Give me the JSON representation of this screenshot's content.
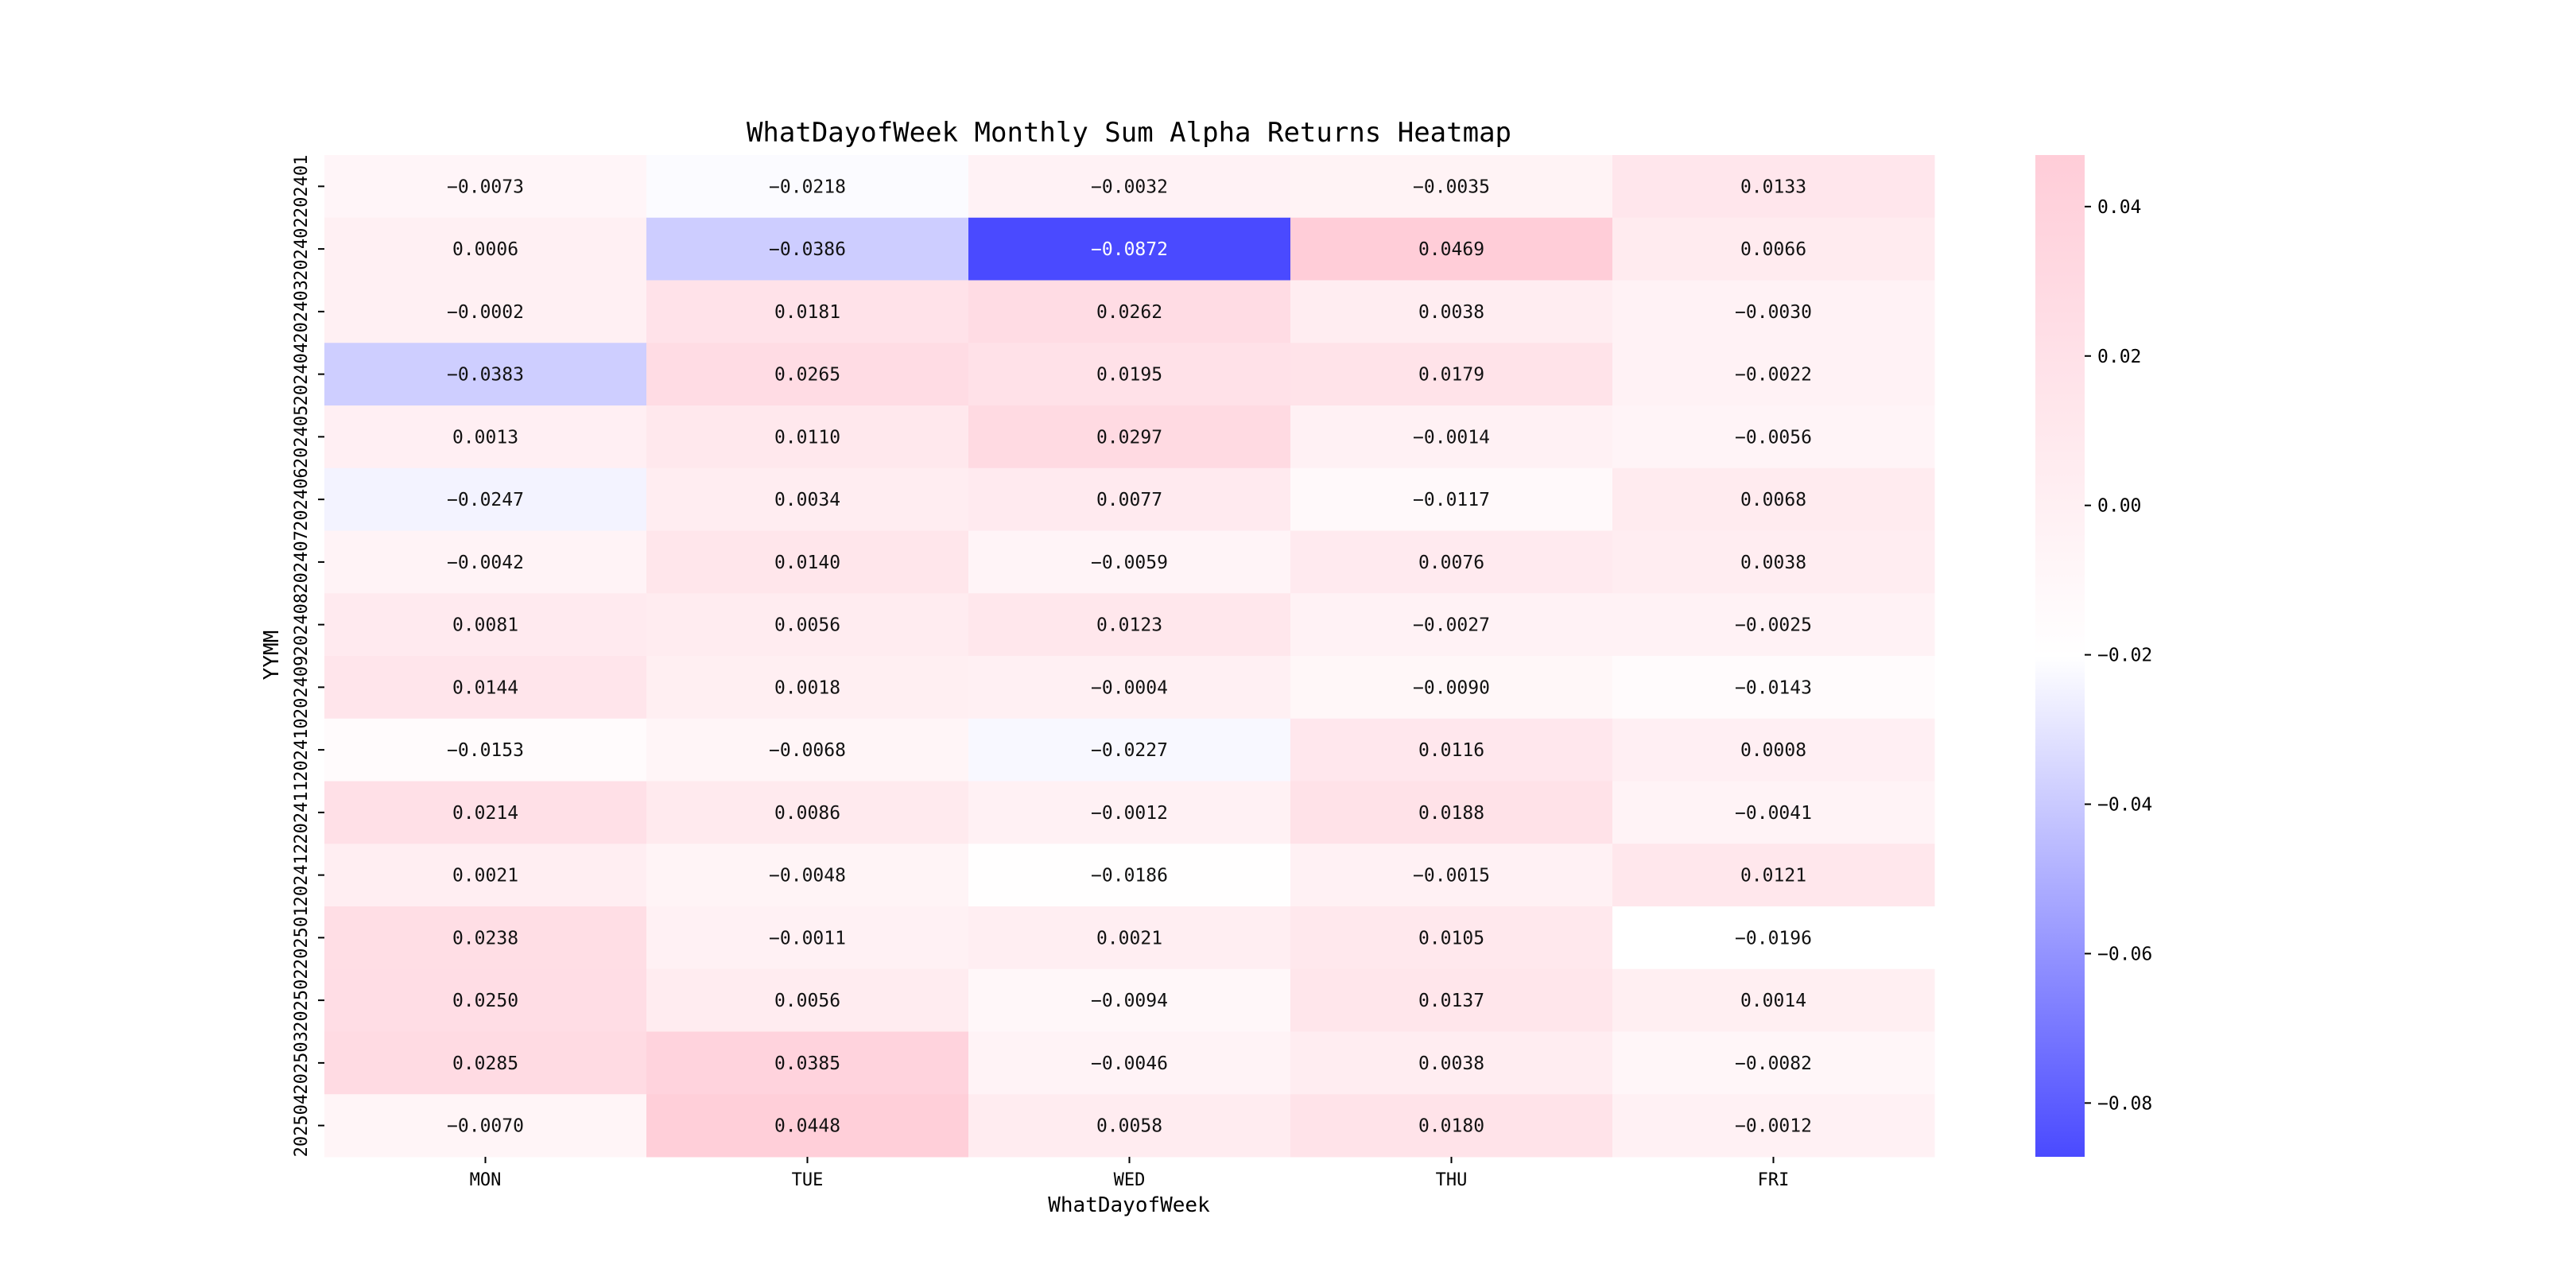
{
  "chart_data": {
    "type": "heatmap",
    "title": "WhatDayofWeek Monthly Sum Alpha Returns Heatmap",
    "xlabel": "WhatDayofWeek",
    "ylabel": "YYMM",
    "x_categories": [
      "MON",
      "TUE",
      "WED",
      "THU",
      "FRI"
    ],
    "y_categories": [
      "202401",
      "202402",
      "202403",
      "202404",
      "202405",
      "202406",
      "202407",
      "202408",
      "202409",
      "202410",
      "202411",
      "202412",
      "202501",
      "202502",
      "202503",
      "202504"
    ],
    "values": [
      [
        -0.0073,
        -0.0218,
        -0.0032,
        -0.0035,
        0.0133
      ],
      [
        0.0006,
        -0.0386,
        -0.0872,
        0.0469,
        0.0066
      ],
      [
        -0.0002,
        0.0181,
        0.0262,
        0.0038,
        -0.003
      ],
      [
        -0.0383,
        0.0265,
        0.0195,
        0.0179,
        -0.0022
      ],
      [
        0.0013,
        0.011,
        0.0297,
        -0.0014,
        -0.0056
      ],
      [
        -0.0247,
        0.0034,
        0.0077,
        -0.0117,
        0.0068
      ],
      [
        -0.0042,
        0.014,
        -0.0059,
        0.0076,
        0.0038
      ],
      [
        0.0081,
        0.0056,
        0.0123,
        -0.0027,
        -0.0025
      ],
      [
        0.0144,
        0.0018,
        -0.0004,
        -0.009,
        -0.0143
      ],
      [
        -0.0153,
        -0.0068,
        -0.0227,
        0.0116,
        0.0008
      ],
      [
        0.0214,
        0.0086,
        -0.0012,
        0.0188,
        -0.0041
      ],
      [
        0.0021,
        -0.0048,
        -0.0186,
        -0.0015,
        0.0121
      ],
      [
        0.0238,
        -0.0011,
        0.0021,
        0.0105,
        -0.0196
      ],
      [
        0.025,
        0.0056,
        -0.0094,
        0.0137,
        0.0014
      ],
      [
        0.0285,
        0.0385,
        -0.0046,
        0.0038,
        -0.0082
      ],
      [
        -0.007,
        0.0448,
        0.0058,
        0.018,
        -0.0012
      ]
    ],
    "value_format_decimals": 4,
    "colorbar": {
      "vmin": -0.0872,
      "vmax": 0.0469,
      "center": -0.0202,
      "ticks": [
        0.04,
        0.02,
        0.0,
        -0.02,
        -0.04,
        -0.06,
        -0.08
      ],
      "tick_labels": [
        "0.04",
        "0.02",
        "0.00",
        "−0.02",
        "−0.04",
        "−0.06",
        "−0.08"
      ],
      "color_low": "#4a4aff",
      "color_mid": "#ffffff",
      "color_high": "#ffcdd8"
    }
  }
}
